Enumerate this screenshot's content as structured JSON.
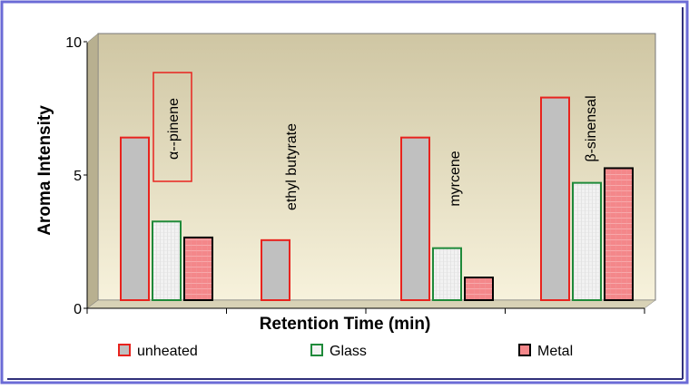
{
  "chart_data": {
    "type": "bar",
    "title": "",
    "xlabel": "Retention Time (min)",
    "ylabel": "Aroma Intensity",
    "ylim": [
      0,
      10
    ],
    "yticks": [
      "0",
      "5",
      "10"
    ],
    "grid": false,
    "legend_position": "bottom",
    "categories": [
      "α--pinene",
      "ethyl butyrate",
      "myrcene",
      "β-sinensal"
    ],
    "series": [
      {
        "name": "unheated",
        "values": [
          6.1,
          2.25,
          6.1,
          7.6
        ]
      },
      {
        "name": "Glass",
        "values": [
          2.95,
          null,
          1.95,
          4.4
        ]
      },
      {
        "name": "Metal",
        "values": [
          2.35,
          null,
          0.85,
          4.95
        ]
      }
    ]
  },
  "colors": {
    "frame_border": "#6b6bd6",
    "plot_gradient_top": "#cfc6a3",
    "plot_gradient_bottom": "#f7f2dc",
    "unheated_fill": "#c0c0c0",
    "unheated_border": "#e8231e",
    "glass_fill": "#f2f2f2",
    "glass_border": "#1f8a3a",
    "metal_fill": "#f4878a",
    "metal_border": "#000000",
    "label_box_border": "#e8231e"
  }
}
